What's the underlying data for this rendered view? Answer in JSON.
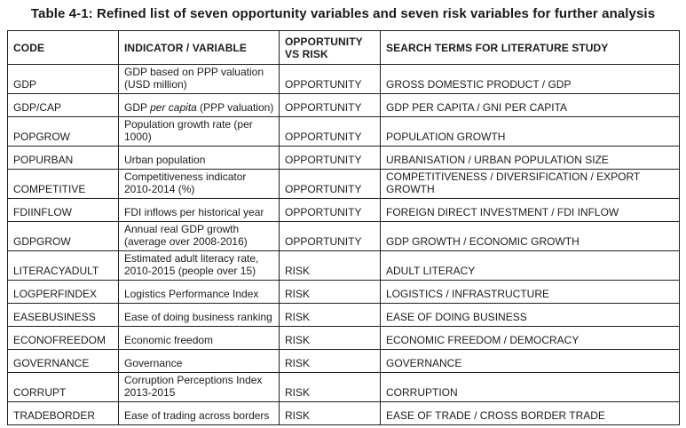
{
  "title": "Table 4-1: Refined list of seven opportunity variables and seven risk variables for further analysis",
  "colors": {
    "background": "#ffffff",
    "text": "#1c1c1c",
    "border": "#1f1f1f"
  },
  "table": {
    "headers": [
      "CODE",
      "INDICATOR / VARIABLE",
      "OPPORTUNITY VS RISK",
      "SEARCH TERMS FOR LITERATURE STUDY"
    ],
    "rows": [
      {
        "code": "GDP",
        "indicator": "GDP based on PPP valuation (USD million)",
        "type": "OPPORTUNITY",
        "search": "GROSS DOMESTIC PRODUCT / GDP"
      },
      {
        "code": "GDP/CAP",
        "indicator_parts": [
          "GDP ",
          "per capita",
          " (PPP valuation)"
        ],
        "type": "OPPORTUNITY",
        "search": "GDP PER CAPITA / GNI PER CAPITA"
      },
      {
        "code": "POPGROW",
        "indicator": "Population growth rate (per 1000)",
        "type": "OPPORTUNITY",
        "search": "POPULATION GROWTH"
      },
      {
        "code": "POPURBAN",
        "indicator": "Urban population",
        "type": "OPPORTUNITY",
        "search": "URBANISATION / URBAN POPULATION SIZE"
      },
      {
        "code": "COMPETITIVE",
        "indicator": "Competitiveness indicator 2010-2014 (%)",
        "type": "OPPORTUNITY",
        "search": "COMPETITIVENESS / DIVERSIFICATION / EXPORT GROWTH"
      },
      {
        "code": "FDIINFLOW",
        "indicator": "FDI inflows per historical year",
        "type": "OPPORTUNITY",
        "search": "FOREIGN DIRECT INVESTMENT / FDI INFLOW"
      },
      {
        "code": "GDPGROW",
        "indicator": "Annual real GDP growth (average over 2008-2016)",
        "type": "OPPORTUNITY",
        "search": "GDP GROWTH / ECONOMIC GROWTH"
      },
      {
        "code": "LITERACYADULT",
        "indicator": "Estimated adult literacy rate, 2010-2015 (people over 15)",
        "type": "RISK",
        "search": "ADULT LITERACY"
      },
      {
        "code": "LOGPERFINDEX",
        "indicator": "Logistics Performance Index",
        "type": "RISK",
        "search": "LOGISTICS / INFRASTRUCTURE"
      },
      {
        "code": "EASEBUSINESS",
        "indicator": "Ease of doing business ranking",
        "type": "RISK",
        "search": "EASE OF DOING BUSINESS"
      },
      {
        "code": "ECONOFREEDOM",
        "indicator": "Economic freedom",
        "type": "RISK",
        "search": "ECONOMIC FREEDOM / DEMOCRACY"
      },
      {
        "code": "GOVERNANCE",
        "indicator": "Governance",
        "type": "RISK",
        "search": "GOVERNANCE"
      },
      {
        "code": "CORRUPT",
        "indicator": "Corruption Perceptions Index 2013-2015",
        "type": "RISK",
        "search": "CORRUPTION"
      },
      {
        "code": "TRADEBORDER",
        "indicator": "Ease of trading across borders",
        "type": "RISK",
        "search": "EASE OF TRADE / CROSS BORDER TRADE"
      }
    ]
  }
}
